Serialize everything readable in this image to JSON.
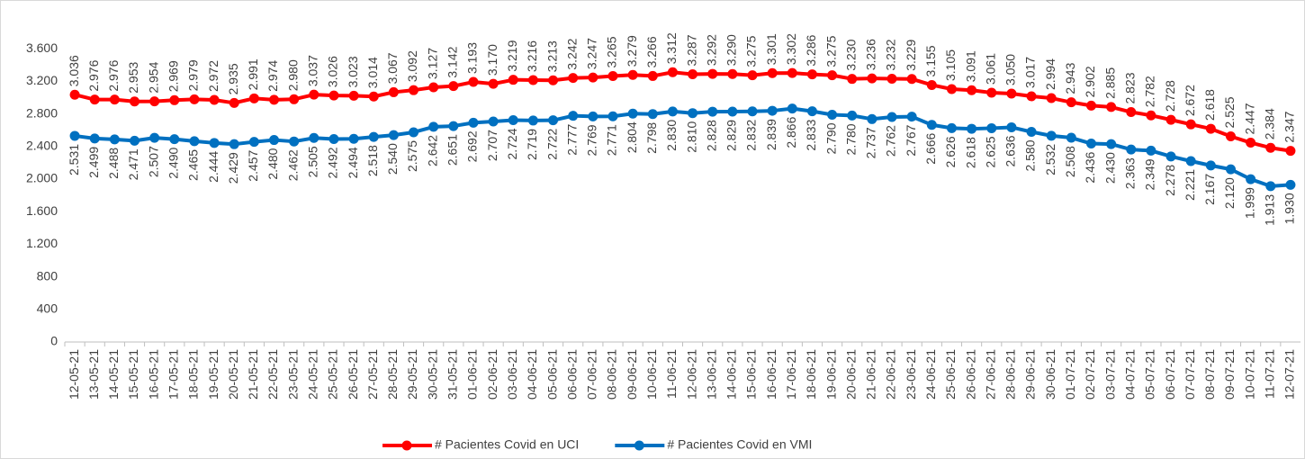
{
  "chart_data": {
    "type": "line",
    "categories": [
      "12-05-21",
      "13-05-21",
      "14-05-21",
      "15-05-21",
      "16-05-21",
      "17-05-21",
      "18-05-21",
      "19-05-21",
      "20-05-21",
      "21-05-21",
      "22-05-21",
      "23-05-21",
      "24-05-21",
      "25-05-21",
      "26-05-21",
      "27-05-21",
      "28-05-21",
      "29-05-21",
      "30-05-21",
      "31-05-21",
      "01-06-21",
      "02-06-21",
      "03-06-21",
      "04-06-21",
      "05-06-21",
      "06-06-21",
      "07-06-21",
      "08-06-21",
      "09-06-21",
      "10-06-21",
      "11-06-21",
      "12-06-21",
      "13-06-21",
      "14-06-21",
      "15-06-21",
      "16-06-21",
      "17-06-21",
      "18-06-21",
      "19-06-21",
      "20-06-21",
      "21-06-21",
      "22-06-21",
      "23-06-21",
      "24-06-21",
      "25-06-21",
      "26-06-21",
      "27-06-21",
      "28-06-21",
      "29-06-21",
      "30-06-21",
      "01-07-21",
      "02-07-21",
      "03-07-21",
      "04-07-21",
      "05-07-21",
      "06-07-21",
      "07-07-21",
      "08-07-21",
      "09-07-21",
      "10-07-21",
      "11-07-21",
      "12-07-21"
    ],
    "series": [
      {
        "name": "# Pacientes Covid en UCI",
        "color": "#ff0000",
        "label_position": "above",
        "values": [
          3036,
          2976,
          2976,
          2953,
          2954,
          2969,
          2979,
          2972,
          2935,
          2991,
          2974,
          2980,
          3037,
          3026,
          3023,
          3014,
          3067,
          3092,
          3127,
          3142,
          3193,
          3170,
          3219,
          3216,
          3213,
          3242,
          3247,
          3265,
          3279,
          3266,
          3312,
          3287,
          3292,
          3290,
          3275,
          3301,
          3302,
          3286,
          3275,
          3230,
          3236,
          3232,
          3229,
          3155,
          3105,
          3091,
          3061,
          3050,
          3017,
          2994,
          2943,
          2902,
          2885,
          2823,
          2782,
          2728,
          2672,
          2618,
          2525,
          2447,
          2384,
          2347
        ],
        "value_labels": [
          "3.036",
          "2.976",
          "2.976",
          "2.953",
          "2.954",
          "2.969",
          "2.979",
          "2.972",
          "2.935",
          "2.991",
          "2.974",
          "2.980",
          "3.037",
          "3.026",
          "3.023",
          "3.014",
          "3.067",
          "3.092",
          "3.127",
          "3.142",
          "3.193",
          "3.170",
          "3.219",
          "3.216",
          "3.213",
          "3.242",
          "3.247",
          "3.265",
          "3.279",
          "3.266",
          "3.312",
          "3.287",
          "3.292",
          "3.290",
          "3.275",
          "3.301",
          "3.302",
          "3.286",
          "3.275",
          "3.230",
          "3.236",
          "3.232",
          "3.229",
          "3.155",
          "3.105",
          "3.091",
          "3.061",
          "3.050",
          "3.017",
          "2.994",
          "2.943",
          "2.902",
          "2.885",
          "2.823",
          "2.782",
          "2.728",
          "2.672",
          "2.618",
          "2.525",
          "2.447",
          "2.384",
          "2.347"
        ]
      },
      {
        "name": "# Pacientes Covid en VMI",
        "color": "#0070c0",
        "label_position": "below",
        "values": [
          2531,
          2499,
          2488,
          2471,
          2507,
          2490,
          2465,
          2444,
          2429,
          2457,
          2480,
          2462,
          2505,
          2492,
          2494,
          2518,
          2540,
          2575,
          2642,
          2651,
          2692,
          2707,
          2724,
          2719,
          2722,
          2777,
          2769,
          2771,
          2804,
          2798,
          2830,
          2810,
          2828,
          2829,
          2832,
          2839,
          2866,
          2833,
          2790,
          2780,
          2737,
          2762,
          2767,
          2666,
          2626,
          2618,
          2625,
          2636,
          2580,
          2532,
          2508,
          2436,
          2430,
          2363,
          2349,
          2278,
          2221,
          2167,
          2120,
          1999,
          1913,
          1930
        ],
        "value_labels": [
          "2.531",
          "2.499",
          "2.488",
          "2.471",
          "2.507",
          "2.490",
          "2.465",
          "2.444",
          "2.429",
          "2.457",
          "2.480",
          "2.462",
          "2.505",
          "2.492",
          "2.494",
          "2.518",
          "2.540",
          "2.575",
          "2.642",
          "2.651",
          "2.692",
          "2.707",
          "2.724",
          "2.719",
          "2.722",
          "2.777",
          "2.769",
          "2.771",
          "2.804",
          "2.798",
          "2.830",
          "2.810",
          "2.828",
          "2.829",
          "2.832",
          "2.839",
          "2.866",
          "2.833",
          "2.790",
          "2.780",
          "2.737",
          "2.762",
          "2.767",
          "2.666",
          "2.626",
          "2.618",
          "2.625",
          "2.636",
          "2.580",
          "2.532",
          "2.508",
          "2.436",
          "2.430",
          "2.363",
          "2.349",
          "2.278",
          "2.221",
          "2.167",
          "2.120",
          "1.999",
          "1.913",
          "1.930"
        ]
      }
    ],
    "ylim": [
      0,
      4000
    ],
    "yticks": [
      0,
      400,
      800,
      {
        "value": 1200,
        "label": "1.200"
      },
      {
        "value": 1600,
        "label": "1.600"
      },
      {
        "value": 2000,
        "label": "2.000"
      },
      {
        "value": 2400,
        "label": "2.400"
      },
      {
        "value": 2800,
        "label": "2.800"
      },
      {
        "value": 3200,
        "label": "3.200"
      },
      {
        "value": 3600,
        "label": "3.600"
      }
    ],
    "grid": false,
    "legend": "bottom"
  }
}
